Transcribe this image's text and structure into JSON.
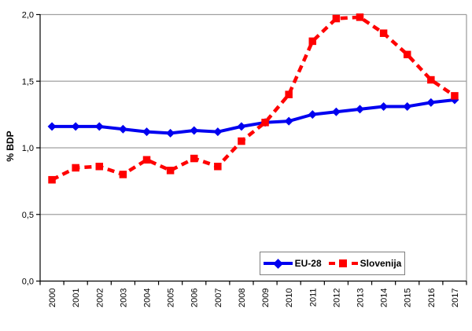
{
  "chart_data": {
    "type": "line",
    "title": "",
    "xlabel": "",
    "ylabel": "% BDP",
    "ylim": [
      0,
      2
    ],
    "ytick_values": [
      0,
      0.5,
      1,
      1.5,
      2
    ],
    "ytick_labels": [
      "0,0",
      "0,5",
      "1,0",
      "1,5",
      "2,0"
    ],
    "grid": true,
    "legend_position": "inside-bottom-right",
    "categories": [
      "2000",
      "2001",
      "2002",
      "2003",
      "2004",
      "2005",
      "2006",
      "2007",
      "2008",
      "2009",
      "2010",
      "2011",
      "2012",
      "2013",
      "2014",
      "2015",
      "2016",
      "2017"
    ],
    "series": [
      {
        "name": "EU-28",
        "color": "#0000F0",
        "line_style": "solid",
        "marker": "diamond",
        "values": [
          1.16,
          1.16,
          1.16,
          1.14,
          1.12,
          1.11,
          1.13,
          1.12,
          1.16,
          1.19,
          1.2,
          1.25,
          1.27,
          1.29,
          1.31,
          1.31,
          1.34,
          1.36
        ]
      },
      {
        "name": "Slovenija",
        "color": "#FF0000",
        "line_style": "dashed",
        "marker": "square",
        "values": [
          0.76,
          0.85,
          0.86,
          0.8,
          0.91,
          0.83,
          0.92,
          0.86,
          1.05,
          1.19,
          1.4,
          1.8,
          1.97,
          1.98,
          1.86,
          1.7,
          1.51,
          1.39
        ]
      }
    ],
    "colors": {
      "grid": "#a0a0a0",
      "axis": "#000000",
      "plot_background": "#ffffff",
      "legend_border": "#7f7f7f"
    }
  }
}
